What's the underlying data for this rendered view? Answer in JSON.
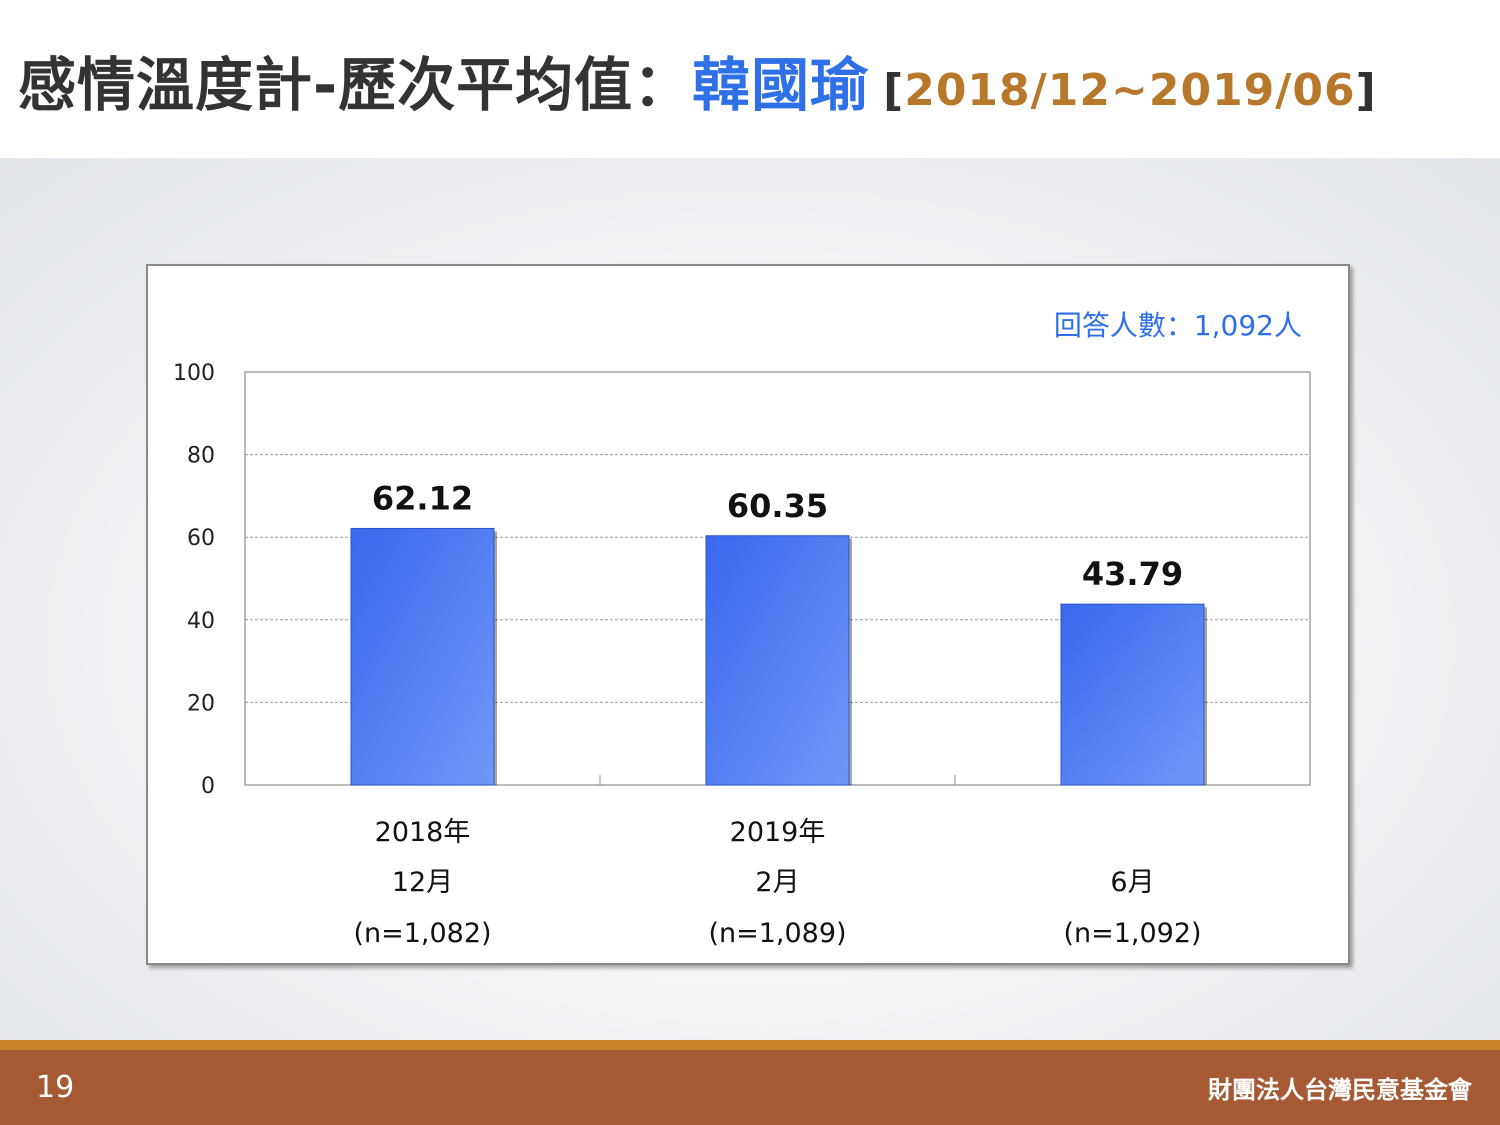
{
  "slide": {
    "title_main": "感情溫度計-歷次平均值：",
    "title_name": "韓國瑜",
    "title_bracket_open": "[",
    "title_range": "2018/12~2019/06",
    "title_bracket_close": "]",
    "page_number": "19",
    "organization": "財團法人台灣民意基金會"
  },
  "colors": {
    "bar": "#3f73f0",
    "accent_blue": "#2f6fe8",
    "range_gold": "#b8782c",
    "footer": "#a65a33",
    "footer_strip": "#c8832a"
  },
  "chart_data": {
    "type": "bar",
    "respondents_note": "回答人數：1,092人",
    "categories": [
      [
        "2018年",
        "12月",
        "(n=1,082)"
      ],
      [
        "2019年",
        "2月",
        "(n=1,089)"
      ],
      [
        "",
        "6月",
        "(n=1,092)"
      ]
    ],
    "values": [
      62.12,
      60.35,
      43.79
    ],
    "value_labels": [
      "62.12",
      "60.35",
      "43.79"
    ],
    "ylim": [
      0,
      100
    ],
    "yticks": [
      0,
      20,
      40,
      60,
      80,
      100
    ],
    "grid": true,
    "xlabel": "",
    "ylabel": ""
  }
}
